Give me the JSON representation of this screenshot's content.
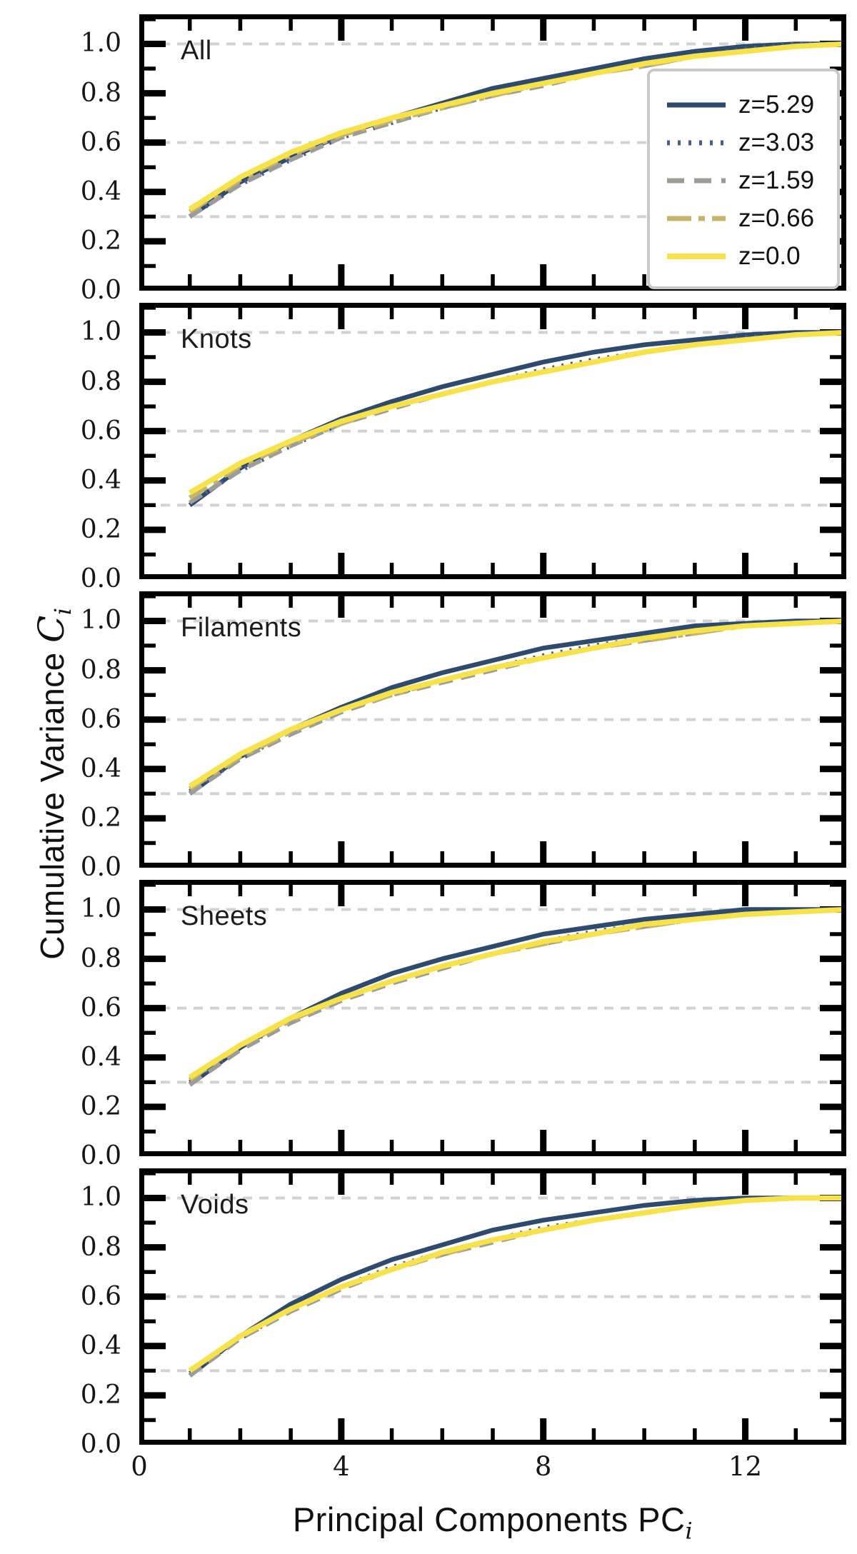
{
  "figure": {
    "y_axis_title_prefix": "Cumulative Variance ",
    "y_axis_symbol": "C",
    "y_axis_subscript": "i",
    "x_axis_title_prefix": "Principal Components PC",
    "x_axis_subscript": "i"
  },
  "axes": {
    "x": {
      "range": [
        0,
        14
      ],
      "major_ticks": [
        0,
        4,
        8,
        12
      ],
      "tick_labels": [
        "0",
        "4",
        "8",
        "12"
      ],
      "minor_step": 1
    },
    "y": {
      "range": [
        0,
        1.12
      ],
      "major_ticks": [
        0.2,
        0.4,
        0.6,
        0.8,
        1.0
      ],
      "minor_ticks": [
        0.1,
        0.3,
        0.5,
        0.7,
        0.9,
        1.1
      ],
      "tick_labels": [
        "1.0",
        "0.8",
        "0.6",
        "0.4",
        "0.2",
        "0.0"
      ],
      "tick_label_values": [
        1.0,
        0.8,
        0.6,
        0.4,
        0.2,
        0.0
      ],
      "gridlines": [
        0.3,
        0.6,
        1.0
      ],
      "grid_color": "#d2d2d2"
    }
  },
  "legend": {
    "entries": [
      {
        "label": "z=5.29",
        "color": "#2e4a6c",
        "dash": "",
        "width": 7
      },
      {
        "label": "z=3.03",
        "color": "#4d5c8f",
        "dash": "4 11",
        "width": 7
      },
      {
        "label": "z=1.59",
        "color": "#9c9c98",
        "dash": "24 14",
        "width": 7
      },
      {
        "label": "z=0.66",
        "color": "#c4b468",
        "dash": "34 10 9 10",
        "width": 7
      },
      {
        "label": "z=0.0",
        "color": "#f6e34c",
        "dash": "",
        "width": 8
      }
    ]
  },
  "series_styles": [
    {
      "name": "z=5.29",
      "color": "#2e4a6c",
      "dash": "",
      "stroke_width": 6.5
    },
    {
      "name": "z=3.03",
      "color": "#4d5c8f",
      "dash": "3 10",
      "stroke_width": 6
    },
    {
      "name": "z=1.59",
      "color": "#9c9c98",
      "dash": "20 12",
      "stroke_width": 6
    },
    {
      "name": "z=0.66",
      "color": "#c4b468",
      "dash": "28 11 7 11",
      "stroke_width": 6.5
    },
    {
      "name": "z=0.0",
      "color": "#f6e34c",
      "dash": "",
      "stroke_width": 7.5
    }
  ],
  "chart_data": [
    {
      "type": "line",
      "panel": "All",
      "x": [
        1,
        2,
        3,
        4,
        5,
        6,
        7,
        8,
        9,
        10,
        11,
        12,
        13,
        14
      ],
      "xlabel": "Principal Components PC_i",
      "ylabel": "Cumulative Variance C_i",
      "xlim": [
        0,
        14
      ],
      "ylim": [
        0,
        1.12
      ],
      "grid_y": [
        0.3,
        0.6,
        1.0
      ],
      "legend_position": "upper right",
      "series": [
        {
          "name": "z=5.29",
          "values": [
            0.3,
            0.44,
            0.54,
            0.63,
            0.7,
            0.76,
            0.82,
            0.86,
            0.9,
            0.94,
            0.97,
            0.99,
            1.0,
            1.0
          ]
        },
        {
          "name": "z=3.03",
          "values": [
            0.3,
            0.43,
            0.53,
            0.62,
            0.68,
            0.74,
            0.79,
            0.84,
            0.88,
            0.92,
            0.95,
            0.98,
            1.0,
            1.0
          ]
        },
        {
          "name": "z=1.59",
          "values": [
            0.3,
            0.43,
            0.53,
            0.62,
            0.68,
            0.74,
            0.79,
            0.83,
            0.88,
            0.91,
            0.95,
            0.97,
            0.99,
            1.0
          ]
        },
        {
          "name": "z=0.66",
          "values": [
            0.32,
            0.45,
            0.55,
            0.63,
            0.69,
            0.74,
            0.79,
            0.84,
            0.88,
            0.91,
            0.95,
            0.97,
            0.99,
            1.0
          ]
        },
        {
          "name": "z=0.0",
          "values": [
            0.33,
            0.46,
            0.56,
            0.64,
            0.7,
            0.75,
            0.8,
            0.84,
            0.88,
            0.92,
            0.95,
            0.97,
            0.99,
            1.0
          ]
        }
      ]
    },
    {
      "type": "line",
      "panel": "Knots",
      "x": [
        1,
        2,
        3,
        4,
        5,
        6,
        7,
        8,
        9,
        10,
        11,
        12,
        13,
        14
      ],
      "xlim": [
        0,
        14
      ],
      "ylim": [
        0,
        1.12
      ],
      "grid_y": [
        0.3,
        0.6,
        1.0
      ],
      "series": [
        {
          "name": "z=5.29",
          "values": [
            0.3,
            0.45,
            0.56,
            0.65,
            0.72,
            0.78,
            0.83,
            0.88,
            0.92,
            0.95,
            0.97,
            0.99,
            1.0,
            1.0
          ]
        },
        {
          "name": "z=3.03",
          "values": [
            0.31,
            0.44,
            0.54,
            0.63,
            0.7,
            0.75,
            0.8,
            0.85,
            0.89,
            0.92,
            0.95,
            0.98,
            0.99,
            1.0
          ]
        },
        {
          "name": "z=1.59",
          "values": [
            0.31,
            0.44,
            0.54,
            0.63,
            0.69,
            0.75,
            0.8,
            0.84,
            0.88,
            0.92,
            0.95,
            0.97,
            0.99,
            1.0
          ]
        },
        {
          "name": "z=0.66",
          "values": [
            0.33,
            0.46,
            0.55,
            0.63,
            0.7,
            0.75,
            0.8,
            0.84,
            0.88,
            0.92,
            0.95,
            0.97,
            0.99,
            1.0
          ]
        },
        {
          "name": "z=0.0",
          "values": [
            0.35,
            0.47,
            0.56,
            0.64,
            0.7,
            0.75,
            0.8,
            0.84,
            0.88,
            0.92,
            0.95,
            0.97,
            0.99,
            1.0
          ]
        }
      ]
    },
    {
      "type": "line",
      "panel": "Filaments",
      "x": [
        1,
        2,
        3,
        4,
        5,
        6,
        7,
        8,
        9,
        10,
        11,
        12,
        13,
        14
      ],
      "xlim": [
        0,
        14
      ],
      "ylim": [
        0,
        1.12
      ],
      "grid_y": [
        0.3,
        0.6,
        1.0
      ],
      "series": [
        {
          "name": "z=5.29",
          "values": [
            0.3,
            0.45,
            0.56,
            0.65,
            0.73,
            0.79,
            0.84,
            0.89,
            0.92,
            0.95,
            0.98,
            0.99,
            1.0,
            1.0
          ]
        },
        {
          "name": "z=3.03",
          "values": [
            0.31,
            0.44,
            0.55,
            0.64,
            0.7,
            0.76,
            0.81,
            0.86,
            0.9,
            0.93,
            0.96,
            0.98,
            0.99,
            1.0
          ]
        },
        {
          "name": "z=1.59",
          "values": [
            0.3,
            0.44,
            0.54,
            0.63,
            0.7,
            0.75,
            0.8,
            0.85,
            0.89,
            0.92,
            0.95,
            0.98,
            0.99,
            1.0
          ]
        },
        {
          "name": "z=0.66",
          "values": [
            0.32,
            0.45,
            0.55,
            0.64,
            0.7,
            0.76,
            0.81,
            0.85,
            0.89,
            0.92,
            0.95,
            0.98,
            0.99,
            1.0
          ]
        },
        {
          "name": "z=0.0",
          "values": [
            0.33,
            0.46,
            0.56,
            0.64,
            0.71,
            0.76,
            0.81,
            0.85,
            0.89,
            0.93,
            0.96,
            0.98,
            0.99,
            1.0
          ]
        }
      ]
    },
    {
      "type": "line",
      "panel": "Sheets",
      "x": [
        1,
        2,
        3,
        4,
        5,
        6,
        7,
        8,
        9,
        10,
        11,
        12,
        13,
        14
      ],
      "xlim": [
        0,
        14
      ],
      "ylim": [
        0,
        1.12
      ],
      "grid_y": [
        0.3,
        0.6,
        1.0
      ],
      "series": [
        {
          "name": "z=5.29",
          "values": [
            0.29,
            0.44,
            0.56,
            0.66,
            0.74,
            0.8,
            0.85,
            0.9,
            0.93,
            0.96,
            0.98,
            1.0,
            1.0,
            1.0
          ]
        },
        {
          "name": "z=3.03",
          "values": [
            0.3,
            0.44,
            0.55,
            0.64,
            0.71,
            0.77,
            0.82,
            0.87,
            0.91,
            0.94,
            0.96,
            0.98,
            0.99,
            1.0
          ]
        },
        {
          "name": "z=1.59",
          "values": [
            0.29,
            0.43,
            0.54,
            0.63,
            0.7,
            0.76,
            0.82,
            0.86,
            0.9,
            0.93,
            0.96,
            0.98,
            0.99,
            1.0
          ]
        },
        {
          "name": "z=0.66",
          "values": [
            0.31,
            0.45,
            0.55,
            0.64,
            0.71,
            0.77,
            0.82,
            0.86,
            0.9,
            0.93,
            0.96,
            0.98,
            0.99,
            1.0
          ]
        },
        {
          "name": "z=0.0",
          "values": [
            0.32,
            0.45,
            0.56,
            0.64,
            0.71,
            0.77,
            0.82,
            0.87,
            0.9,
            0.94,
            0.96,
            0.98,
            0.99,
            1.0
          ]
        }
      ]
    },
    {
      "type": "line",
      "panel": "Voids",
      "x": [
        1,
        2,
        3,
        4,
        5,
        6,
        7,
        8,
        9,
        10,
        11,
        12,
        13,
        14
      ],
      "xlim": [
        0,
        14
      ],
      "ylim": [
        0,
        1.12
      ],
      "grid_y": [
        0.3,
        0.6,
        1.0
      ],
      "series": [
        {
          "name": "z=5.29",
          "values": [
            0.28,
            0.44,
            0.57,
            0.67,
            0.75,
            0.81,
            0.87,
            0.91,
            0.94,
            0.97,
            0.99,
            1.0,
            1.0,
            1.0
          ]
        },
        {
          "name": "z=3.03",
          "values": [
            0.29,
            0.43,
            0.55,
            0.64,
            0.72,
            0.78,
            0.83,
            0.88,
            0.91,
            0.94,
            0.97,
            0.99,
            1.0,
            1.0
          ]
        },
        {
          "name": "z=1.59",
          "values": [
            0.28,
            0.43,
            0.54,
            0.63,
            0.71,
            0.77,
            0.82,
            0.87,
            0.91,
            0.94,
            0.97,
            0.99,
            1.0,
            1.0
          ]
        },
        {
          "name": "z=0.66",
          "values": [
            0.3,
            0.44,
            0.55,
            0.64,
            0.71,
            0.77,
            0.83,
            0.87,
            0.91,
            0.94,
            0.97,
            0.99,
            1.0,
            1.0
          ]
        },
        {
          "name": "z=0.0",
          "values": [
            0.3,
            0.44,
            0.55,
            0.64,
            0.71,
            0.78,
            0.83,
            0.87,
            0.91,
            0.94,
            0.97,
            0.99,
            1.0,
            1.0
          ]
        }
      ]
    }
  ],
  "layout": {
    "panel_tops": [
      20,
      424,
      828,
      1232,
      1636
    ],
    "frame_color": "#000000",
    "background": "#ffffff"
  }
}
